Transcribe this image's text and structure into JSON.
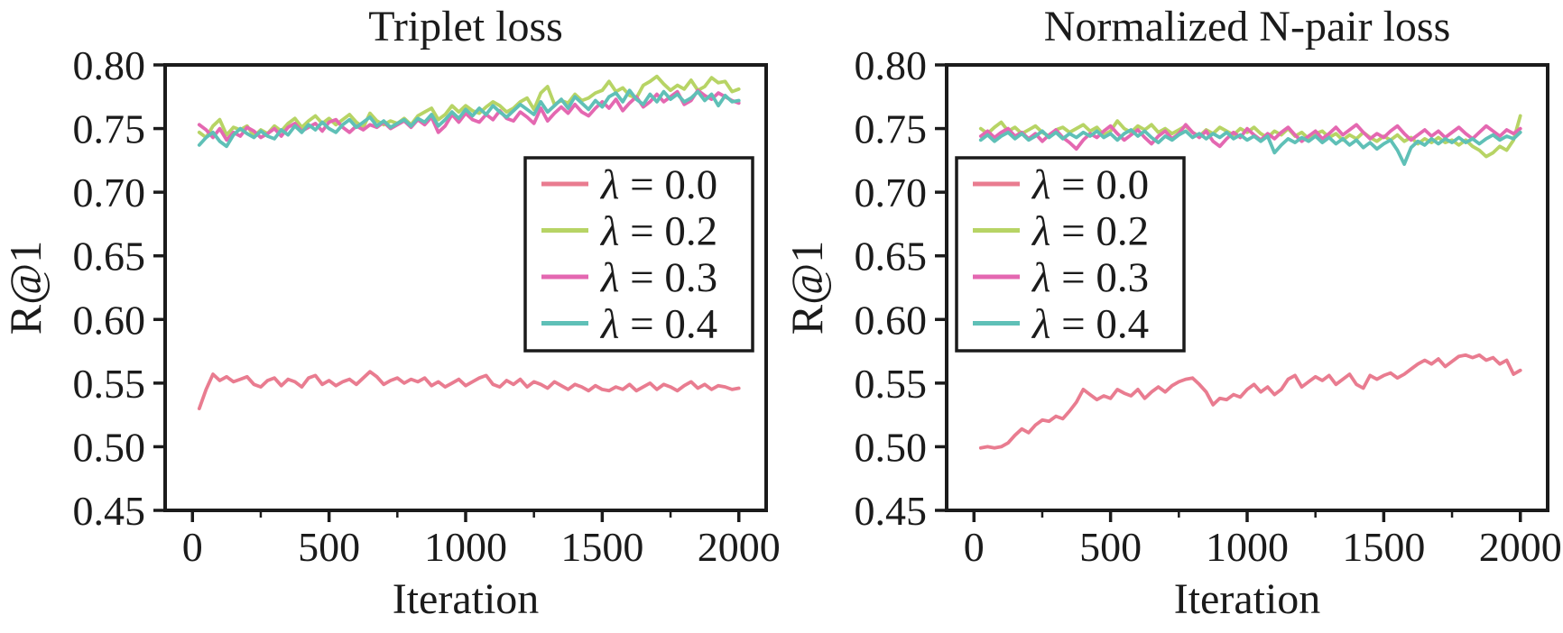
{
  "figure": {
    "background": "#ffffff",
    "ink_color": "#1b1b1b"
  },
  "chart_data": [
    {
      "type": "line",
      "title": "Triplet loss",
      "xlabel": "Iteration",
      "ylabel": "R@1",
      "xlim": [
        -100,
        2100
      ],
      "ylim": [
        0.45,
        0.8
      ],
      "grid": false,
      "legend_position": "upper right",
      "legend_xy": [
        582,
        175
      ],
      "xticks": [
        0,
        500,
        1000,
        1500,
        2000
      ],
      "xticklabels": [
        "0",
        "500",
        "1000",
        "1500",
        "2000"
      ],
      "xminorticks": [
        250,
        750,
        1250,
        1750
      ],
      "yticks": [
        0.45,
        0.5,
        0.55,
        0.6,
        0.65,
        0.7,
        0.75,
        0.8
      ],
      "yticklabels": [
        "0.45",
        "0.50",
        "0.55",
        "0.60",
        "0.65",
        "0.70",
        "0.75",
        "0.80"
      ],
      "x": [
        25,
        50,
        75,
        100,
        125,
        150,
        175,
        200,
        225,
        250,
        275,
        300,
        325,
        350,
        375,
        400,
        425,
        450,
        475,
        500,
        525,
        550,
        575,
        600,
        625,
        650,
        675,
        700,
        725,
        750,
        775,
        800,
        825,
        850,
        875,
        900,
        925,
        950,
        975,
        1000,
        1025,
        1050,
        1075,
        1100,
        1125,
        1150,
        1175,
        1200,
        1225,
        1250,
        1275,
        1300,
        1325,
        1350,
        1375,
        1400,
        1425,
        1450,
        1475,
        1500,
        1525,
        1550,
        1575,
        1600,
        1625,
        1650,
        1675,
        1700,
        1725,
        1750,
        1775,
        1800,
        1825,
        1850,
        1875,
        1900,
        1925,
        1950,
        1975,
        2000
      ],
      "series": [
        {
          "id": "lambda-0-0",
          "label": "λ = 0.0",
          "color": "#e97c90",
          "values": [
            0.53,
            0.545,
            0.557,
            0.552,
            0.555,
            0.551,
            0.553,
            0.555,
            0.549,
            0.547,
            0.552,
            0.554,
            0.548,
            0.553,
            0.551,
            0.547,
            0.554,
            0.556,
            0.549,
            0.552,
            0.548,
            0.551,
            0.553,
            0.549,
            0.554,
            0.559,
            0.555,
            0.549,
            0.552,
            0.554,
            0.55,
            0.553,
            0.551,
            0.554,
            0.548,
            0.551,
            0.547,
            0.55,
            0.553,
            0.548,
            0.551,
            0.554,
            0.556,
            0.549,
            0.547,
            0.552,
            0.549,
            0.553,
            0.547,
            0.551,
            0.549,
            0.546,
            0.551,
            0.548,
            0.545,
            0.549,
            0.547,
            0.544,
            0.548,
            0.545,
            0.544,
            0.547,
            0.545,
            0.549,
            0.544,
            0.547,
            0.55,
            0.545,
            0.549,
            0.547,
            0.544,
            0.548,
            0.551,
            0.546,
            0.549,
            0.545,
            0.548,
            0.547,
            0.545,
            0.546
          ]
        },
        {
          "id": "lambda-0-2",
          "label": "λ = 0.2",
          "color": "#b7d465",
          "values": [
            0.747,
            0.743,
            0.752,
            0.757,
            0.745,
            0.751,
            0.749,
            0.752,
            0.744,
            0.749,
            0.746,
            0.752,
            0.748,
            0.754,
            0.758,
            0.751,
            0.756,
            0.76,
            0.754,
            0.758,
            0.753,
            0.757,
            0.761,
            0.755,
            0.751,
            0.762,
            0.756,
            0.753,
            0.756,
            0.754,
            0.758,
            0.753,
            0.76,
            0.763,
            0.766,
            0.757,
            0.761,
            0.768,
            0.763,
            0.768,
            0.764,
            0.762,
            0.767,
            0.771,
            0.768,
            0.763,
            0.766,
            0.771,
            0.774,
            0.765,
            0.778,
            0.783,
            0.769,
            0.772,
            0.77,
            0.777,
            0.772,
            0.774,
            0.778,
            0.78,
            0.787,
            0.779,
            0.782,
            0.776,
            0.774,
            0.784,
            0.787,
            0.791,
            0.785,
            0.78,
            0.784,
            0.781,
            0.788,
            0.78,
            0.783,
            0.79,
            0.786,
            0.787,
            0.779,
            0.781
          ]
        },
        {
          "id": "lambda-0-3",
          "label": "λ = 0.3",
          "color": "#e468b1",
          "values": [
            0.753,
            0.749,
            0.743,
            0.75,
            0.741,
            0.747,
            0.744,
            0.751,
            0.748,
            0.743,
            0.746,
            0.75,
            0.744,
            0.751,
            0.754,
            0.748,
            0.751,
            0.754,
            0.748,
            0.755,
            0.757,
            0.751,
            0.747,
            0.752,
            0.749,
            0.753,
            0.751,
            0.755,
            0.75,
            0.753,
            0.756,
            0.751,
            0.757,
            0.753,
            0.759,
            0.747,
            0.752,
            0.761,
            0.755,
            0.762,
            0.757,
            0.755,
            0.761,
            0.757,
            0.764,
            0.758,
            0.756,
            0.763,
            0.759,
            0.754,
            0.766,
            0.756,
            0.762,
            0.767,
            0.762,
            0.769,
            0.763,
            0.76,
            0.766,
            0.771,
            0.766,
            0.773,
            0.764,
            0.77,
            0.775,
            0.767,
            0.771,
            0.777,
            0.771,
            0.775,
            0.779,
            0.769,
            0.772,
            0.78,
            0.776,
            0.773,
            0.778,
            0.775,
            0.772,
            0.77
          ]
        },
        {
          "id": "lambda-0-4",
          "label": "λ = 0.4",
          "color": "#5fc0b7",
          "values": [
            0.737,
            0.743,
            0.747,
            0.74,
            0.736,
            0.745,
            0.75,
            0.746,
            0.743,
            0.748,
            0.744,
            0.742,
            0.749,
            0.745,
            0.752,
            0.747,
            0.753,
            0.749,
            0.755,
            0.75,
            0.747,
            0.753,
            0.757,
            0.751,
            0.755,
            0.759,
            0.752,
            0.756,
            0.751,
            0.754,
            0.757,
            0.752,
            0.758,
            0.755,
            0.761,
            0.752,
            0.757,
            0.763,
            0.758,
            0.765,
            0.76,
            0.766,
            0.761,
            0.768,
            0.763,
            0.759,
            0.764,
            0.769,
            0.765,
            0.761,
            0.771,
            0.763,
            0.768,
            0.773,
            0.766,
            0.775,
            0.77,
            0.765,
            0.772,
            0.767,
            0.775,
            0.778,
            0.771,
            0.78,
            0.773,
            0.769,
            0.777,
            0.771,
            0.779,
            0.773,
            0.777,
            0.771,
            0.774,
            0.779,
            0.772,
            0.777,
            0.768,
            0.776,
            0.771,
            0.772
          ]
        }
      ]
    },
    {
      "type": "line",
      "title": "Normalized N-pair loss",
      "xlabel": "Iteration",
      "ylabel": "R@1",
      "xlim": [
        -100,
        2100
      ],
      "ylim": [
        0.45,
        0.8
      ],
      "grid": false,
      "legend_position": "upper left",
      "legend_xy": [
        194,
        175
      ],
      "xticks": [
        0,
        500,
        1000,
        1500,
        2000
      ],
      "xticklabels": [
        "0",
        "500",
        "1000",
        "1500",
        "2000"
      ],
      "xminorticks": [
        250,
        750,
        1250,
        1750
      ],
      "yticks": [
        0.45,
        0.5,
        0.55,
        0.6,
        0.65,
        0.7,
        0.75,
        0.8
      ],
      "yticklabels": [
        "0.45",
        "0.50",
        "0.55",
        "0.60",
        "0.65",
        "0.70",
        "0.75",
        "0.80"
      ],
      "x": [
        25,
        50,
        75,
        100,
        125,
        150,
        175,
        200,
        225,
        250,
        275,
        300,
        325,
        350,
        375,
        400,
        425,
        450,
        475,
        500,
        525,
        550,
        575,
        600,
        625,
        650,
        675,
        700,
        725,
        750,
        775,
        800,
        825,
        850,
        875,
        900,
        925,
        950,
        975,
        1000,
        1025,
        1050,
        1075,
        1100,
        1125,
        1150,
        1175,
        1200,
        1225,
        1250,
        1275,
        1300,
        1325,
        1350,
        1375,
        1400,
        1425,
        1450,
        1475,
        1500,
        1525,
        1550,
        1575,
        1600,
        1625,
        1650,
        1675,
        1700,
        1725,
        1750,
        1775,
        1800,
        1825,
        1850,
        1875,
        1900,
        1925,
        1950,
        1975,
        2000
      ],
      "series": [
        {
          "id": "lambda-0-0",
          "label": "λ = 0.0",
          "color": "#e97c90",
          "values": [
            0.499,
            0.5,
            0.499,
            0.5,
            0.503,
            0.509,
            0.514,
            0.511,
            0.517,
            0.521,
            0.52,
            0.524,
            0.522,
            0.528,
            0.535,
            0.545,
            0.541,
            0.537,
            0.54,
            0.538,
            0.545,
            0.542,
            0.54,
            0.545,
            0.538,
            0.543,
            0.547,
            0.543,
            0.548,
            0.551,
            0.553,
            0.554,
            0.549,
            0.543,
            0.533,
            0.538,
            0.537,
            0.541,
            0.539,
            0.545,
            0.549,
            0.543,
            0.547,
            0.541,
            0.545,
            0.553,
            0.556,
            0.547,
            0.551,
            0.555,
            0.552,
            0.556,
            0.549,
            0.553,
            0.557,
            0.549,
            0.546,
            0.556,
            0.553,
            0.556,
            0.558,
            0.554,
            0.557,
            0.561,
            0.565,
            0.568,
            0.565,
            0.569,
            0.563,
            0.567,
            0.571,
            0.572,
            0.57,
            0.572,
            0.568,
            0.57,
            0.565,
            0.568,
            0.557,
            0.56
          ]
        },
        {
          "id": "lambda-0-2",
          "label": "λ = 0.2",
          "color": "#b7d465",
          "values": [
            0.75,
            0.746,
            0.751,
            0.755,
            0.748,
            0.751,
            0.746,
            0.749,
            0.752,
            0.747,
            0.744,
            0.749,
            0.751,
            0.747,
            0.75,
            0.753,
            0.748,
            0.751,
            0.745,
            0.748,
            0.756,
            0.75,
            0.747,
            0.752,
            0.749,
            0.753,
            0.747,
            0.75,
            0.746,
            0.749,
            0.752,
            0.747,
            0.744,
            0.749,
            0.746,
            0.751,
            0.748,
            0.745,
            0.75,
            0.747,
            0.751,
            0.746,
            0.743,
            0.748,
            0.745,
            0.75,
            0.744,
            0.747,
            0.742,
            0.746,
            0.748,
            0.743,
            0.746,
            0.741,
            0.745,
            0.742,
            0.747,
            0.743,
            0.74,
            0.744,
            0.741,
            0.745,
            0.74,
            0.743,
            0.738,
            0.742,
            0.739,
            0.743,
            0.739,
            0.741,
            0.737,
            0.741,
            0.736,
            0.733,
            0.728,
            0.731,
            0.736,
            0.733,
            0.741,
            0.76
          ]
        },
        {
          "id": "lambda-0-3",
          "label": "λ = 0.3",
          "color": "#e468b1",
          "values": [
            0.744,
            0.748,
            0.743,
            0.747,
            0.75,
            0.744,
            0.747,
            0.742,
            0.746,
            0.74,
            0.745,
            0.749,
            0.743,
            0.739,
            0.734,
            0.741,
            0.746,
            0.743,
            0.748,
            0.752,
            0.746,
            0.741,
            0.745,
            0.749,
            0.743,
            0.738,
            0.744,
            0.748,
            0.742,
            0.746,
            0.753,
            0.747,
            0.743,
            0.748,
            0.74,
            0.736,
            0.742,
            0.747,
            0.743,
            0.75,
            0.745,
            0.741,
            0.746,
            0.742,
            0.747,
            0.751,
            0.745,
            0.74,
            0.744,
            0.748,
            0.742,
            0.746,
            0.751,
            0.745,
            0.749,
            0.753,
            0.747,
            0.742,
            0.746,
            0.743,
            0.748,
            0.752,
            0.746,
            0.741,
            0.745,
            0.749,
            0.744,
            0.748,
            0.743,
            0.747,
            0.751,
            0.746,
            0.742,
            0.747,
            0.752,
            0.748,
            0.744,
            0.749,
            0.746,
            0.75
          ]
        },
        {
          "id": "lambda-0-4",
          "label": "λ = 0.4",
          "color": "#5fc0b7",
          "values": [
            0.741,
            0.745,
            0.74,
            0.744,
            0.747,
            0.742,
            0.746,
            0.741,
            0.744,
            0.748,
            0.743,
            0.747,
            0.742,
            0.746,
            0.743,
            0.747,
            0.744,
            0.748,
            0.743,
            0.746,
            0.741,
            0.746,
            0.749,
            0.744,
            0.748,
            0.743,
            0.739,
            0.744,
            0.741,
            0.745,
            0.748,
            0.743,
            0.746,
            0.742,
            0.746,
            0.743,
            0.747,
            0.742,
            0.745,
            0.741,
            0.744,
            0.74,
            0.744,
            0.731,
            0.737,
            0.742,
            0.739,
            0.743,
            0.74,
            0.744,
            0.739,
            0.743,
            0.738,
            0.742,
            0.737,
            0.741,
            0.735,
            0.739,
            0.734,
            0.738,
            0.741,
            0.733,
            0.722,
            0.735,
            0.74,
            0.737,
            0.742,
            0.738,
            0.742,
            0.739,
            0.743,
            0.739,
            0.742,
            0.738,
            0.742,
            0.745,
            0.741,
            0.744,
            0.742,
            0.747
          ]
        }
      ]
    }
  ]
}
